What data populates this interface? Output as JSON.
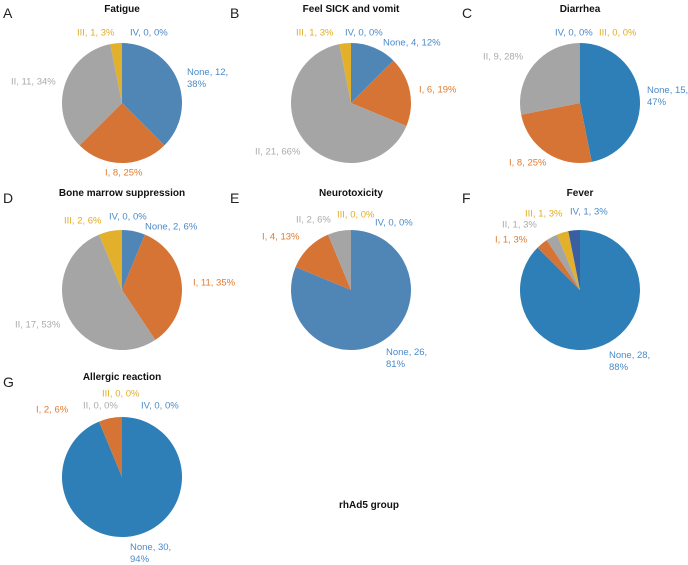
{
  "chart_data": [
    {
      "type": "pie",
      "panel": "A",
      "title": "Fatigue",
      "categories": [
        "None",
        "I",
        "II",
        "III",
        "IV"
      ],
      "values": [
        12,
        8,
        11,
        1,
        0
      ],
      "percents": [
        38,
        25,
        34,
        3,
        0
      ],
      "labels": [
        "None, 12, 38%",
        "I, 8, 25%",
        "II, 11, 34%",
        "III, 1, 3%",
        "IV, 0, 0%"
      ]
    },
    {
      "type": "pie",
      "panel": "B",
      "title": "Feel SICK and vomit",
      "categories": [
        "None",
        "I",
        "II",
        "III",
        "IV"
      ],
      "values": [
        4,
        6,
        21,
        1,
        0
      ],
      "percents": [
        12,
        19,
        66,
        3,
        0
      ],
      "labels": [
        "None, 4, 12%",
        "I, 6, 19%",
        "II, 21, 66%",
        "III, 1, 3%",
        "IV, 0, 0%"
      ]
    },
    {
      "type": "pie",
      "panel": "C",
      "title": "Diarrhea",
      "categories": [
        "None",
        "I",
        "II",
        "III",
        "IV"
      ],
      "values": [
        15,
        8,
        9,
        0,
        0
      ],
      "percents": [
        47,
        25,
        28,
        0,
        0
      ],
      "labels": [
        "None, 15, 47%",
        "I, 8, 25%",
        "II, 9, 28%",
        "III, 0, 0%",
        "IV, 0, 0%"
      ]
    },
    {
      "type": "pie",
      "panel": "D",
      "title": "Bone marrow suppression",
      "categories": [
        "None",
        "I",
        "II",
        "III",
        "IV"
      ],
      "values": [
        2,
        11,
        17,
        2,
        0
      ],
      "percents": [
        6,
        35,
        53,
        6,
        0
      ],
      "labels": [
        "None, 2, 6%",
        "I, 11, 35%",
        "II, 17, 53%",
        "III, 2, 6%",
        "IV, 0, 0%"
      ]
    },
    {
      "type": "pie",
      "panel": "E",
      "title": "Neurotoxicity",
      "categories": [
        "None",
        "I",
        "II",
        "III",
        "IV"
      ],
      "values": [
        26,
        4,
        2,
        0,
        0
      ],
      "percents": [
        81,
        13,
        6,
        0,
        0
      ],
      "labels": [
        "None, 26, 81%",
        "I, 4, 13%",
        "II, 2, 6%",
        "III, 0, 0%",
        "IV, 0, 0%"
      ]
    },
    {
      "type": "pie",
      "panel": "F",
      "title": "Fever",
      "categories": [
        "None",
        "I",
        "II",
        "III",
        "IV"
      ],
      "values": [
        28,
        1,
        1,
        1,
        1
      ],
      "percents": [
        88,
        3,
        3,
        3,
        3
      ],
      "labels": [
        "None, 28, 88%",
        "I, 1, 3%",
        "II, 1, 3%",
        "III, 1, 3%",
        "IV, 1, 3%"
      ]
    },
    {
      "type": "pie",
      "panel": "G",
      "title": "Allergic reaction",
      "categories": [
        "None",
        "I",
        "II",
        "III",
        "IV"
      ],
      "values": [
        30,
        2,
        0,
        0,
        0
      ],
      "percents": [
        94,
        6,
        0,
        0,
        0
      ],
      "labels": [
        "None, 30, 94%",
        "I, 2, 6%",
        "II, 0, 0%",
        "III, 0, 0%",
        "IV, 0, 0%"
      ]
    }
  ],
  "caption": "rhAd5 group",
  "colors": {
    "none_a": "#4f86b5",
    "none_b": "#2e7fb7",
    "I": "#d57435",
    "II": "#a5a5a5",
    "III": "#e3b02c",
    "IV": "#3a5fa0",
    "text_none": "#4a8ac8",
    "text_I": "#e07a30",
    "text_II": "#aaaaaa",
    "text_III": "#e3ac20",
    "text_IV": "#4a8ac8"
  }
}
